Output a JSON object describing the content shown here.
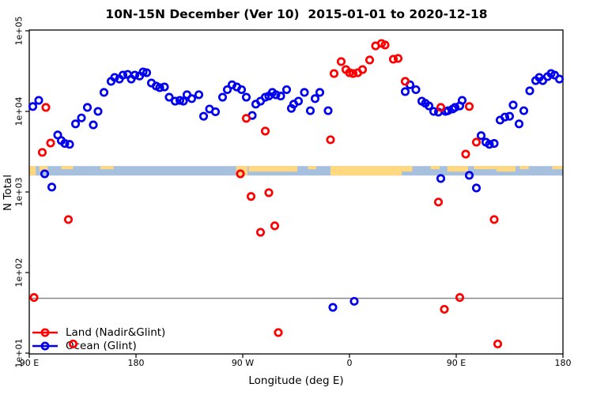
{
  "title": "10N-15N December (Ver 10)  2015-01-01 to 2020-12-18",
  "axes": {
    "xlabel": "Longitude (deg E)",
    "ylabel": "N Total",
    "x_ticks": [
      {
        "lon": 90,
        "label": "90 E"
      },
      {
        "lon": 180,
        "label": "180"
      },
      {
        "lon": 270,
        "label": "90 W"
      },
      {
        "lon": 360,
        "label": "0"
      },
      {
        "lon": 450,
        "label": "90 E"
      },
      {
        "lon": 540,
        "label": "180"
      }
    ],
    "y_ticks": [
      {
        "value": 10,
        "label": "1e+01"
      },
      {
        "value": 100,
        "label": "1e+02"
      },
      {
        "value": 1000,
        "label": "1e+03"
      },
      {
        "value": 10000,
        "label": "1e+04"
      },
      {
        "value": 100000,
        "label": "1e+05"
      }
    ]
  },
  "legend": [
    {
      "label": "Land (Nadir&Glint)",
      "color": "#FF0000"
    },
    {
      "label": "Ocean (Glint)",
      "color": "#0000EE"
    }
  ],
  "colors": {
    "land_series": "#FF0000",
    "ocean_series": "#0000EE",
    "map_ocean": "#A7C0DE",
    "map_land": "#FFD87F",
    "reference_line": "#808080",
    "frame": "#000000"
  },
  "chart_data": {
    "type": "scatter",
    "title": "10N-15N December (Ver 10)  2015-01-01 to 2020-12-18",
    "xlabel": "Longitude (deg E)",
    "ylabel": "N Total",
    "x_domain_deg": [
      90,
      540
    ],
    "y_domain": [
      10,
      100000
    ],
    "y_scale": "log",
    "grid": false,
    "legend_position": "bottom-left",
    "reference_line_value": 48,
    "map_strip": {
      "description": "world-map latitude band 10N-15N drawn across plot",
      "value_range": [
        1600,
        2100
      ],
      "land_segments": [
        {
          "from": 90,
          "to": 95.5,
          "coverage": "full"
        },
        {
          "from": 98.5,
          "to": 105.5,
          "coverage": "top"
        },
        {
          "from": 117,
          "to": 127,
          "coverage": "thin"
        },
        {
          "from": 150,
          "to": 161,
          "coverage": "thin"
        },
        {
          "from": 264.5,
          "to": 274,
          "coverage": "full"
        },
        {
          "from": 275,
          "to": 316,
          "coverage": "top"
        },
        {
          "from": 325,
          "to": 332,
          "coverage": "thin"
        },
        {
          "from": 344,
          "to": 404,
          "coverage": "full"
        },
        {
          "from": 404,
          "to": 413,
          "coverage": "top"
        },
        {
          "from": 428.5,
          "to": 436,
          "coverage": "thin"
        },
        {
          "from": 442.5,
          "to": 460,
          "coverage": "top"
        },
        {
          "from": 465,
          "to": 484,
          "coverage": "thin"
        },
        {
          "from": 484,
          "to": 500,
          "coverage": "top"
        },
        {
          "from": 503.5,
          "to": 511,
          "coverage": "thin"
        },
        {
          "from": 531,
          "to": 540,
          "coverage": "thin"
        }
      ]
    },
    "series": [
      {
        "name": "Ocean (Glint)",
        "color": "#0000EE",
        "points": [
          [
            93,
            11500
          ],
          [
            98,
            13700
          ],
          [
            103,
            1680
          ],
          [
            109,
            1150
          ],
          [
            114,
            5100
          ],
          [
            117,
            4340
          ],
          [
            120,
            4000
          ],
          [
            124,
            3900
          ],
          [
            129,
            7000
          ],
          [
            134,
            8300
          ],
          [
            139,
            11200
          ],
          [
            144,
            6800
          ],
          [
            148,
            10000
          ],
          [
            153,
            17200
          ],
          [
            159,
            23600
          ],
          [
            162,
            26400
          ],
          [
            166,
            25200
          ],
          [
            169,
            28200
          ],
          [
            173,
            28800
          ],
          [
            176,
            25200
          ],
          [
            179,
            28200
          ],
          [
            183,
            27500
          ],
          [
            186,
            30900
          ],
          [
            189,
            30200
          ],
          [
            193,
            22500
          ],
          [
            197,
            20600
          ],
          [
            200,
            19700
          ],
          [
            204,
            20100
          ],
          [
            208,
            15000
          ],
          [
            213,
            13400
          ],
          [
            217,
            13700
          ],
          [
            220,
            13400
          ],
          [
            223,
            16100
          ],
          [
            227,
            14400
          ],
          [
            233,
            16100
          ],
          [
            237,
            8700
          ],
          [
            242,
            10700
          ],
          [
            247,
            9900
          ],
          [
            253,
            15000
          ],
          [
            257,
            18600
          ],
          [
            261,
            21400
          ],
          [
            265,
            20100
          ],
          [
            269,
            18600
          ],
          [
            273,
            15000
          ],
          [
            278,
            8900
          ],
          [
            281,
            12300
          ],
          [
            285,
            13400
          ],
          [
            289,
            15000
          ],
          [
            292,
            15500
          ],
          [
            295,
            17200
          ],
          [
            298,
            16100
          ],
          [
            302,
            15500
          ],
          [
            307,
            18600
          ],
          [
            311,
            10900
          ],
          [
            313,
            12300
          ],
          [
            317,
            13400
          ],
          [
            322,
            17200
          ],
          [
            327,
            10200
          ],
          [
            331,
            14400
          ],
          [
            335,
            17200
          ],
          [
            342,
            10200
          ],
          [
            346,
            37
          ],
          [
            364,
            44
          ],
          [
            407,
            17600
          ],
          [
            411,
            21400
          ],
          [
            416,
            18600
          ],
          [
            421,
            13400
          ],
          [
            424,
            12600
          ],
          [
            427,
            11700
          ],
          [
            431,
            10000
          ],
          [
            435,
            9800
          ],
          [
            437,
            1470
          ],
          [
            441,
            10000
          ],
          [
            443,
            10200
          ],
          [
            447,
            10700
          ],
          [
            449,
            11200
          ],
          [
            453,
            11700
          ],
          [
            455,
            13700
          ],
          [
            461,
            1610
          ],
          [
            467,
            1120
          ],
          [
            471,
            5000
          ],
          [
            475,
            4150
          ],
          [
            478,
            3900
          ],
          [
            482,
            4000
          ],
          [
            487,
            7800
          ],
          [
            491,
            8500
          ],
          [
            495,
            8700
          ],
          [
            498,
            12000
          ],
          [
            503,
            7000
          ],
          [
            507,
            10200
          ],
          [
            512,
            18000
          ],
          [
            517,
            24100
          ],
          [
            520,
            26400
          ],
          [
            523,
            24100
          ],
          [
            527,
            27000
          ],
          [
            530,
            29500
          ],
          [
            533,
            28200
          ],
          [
            537,
            25200
          ]
        ]
      },
      {
        "name": "Land (Nadir&Glint)",
        "color": "#FF0000",
        "points": [
          [
            94,
            49
          ],
          [
            101,
            3100
          ],
          [
            104,
            11200
          ],
          [
            108,
            4050
          ],
          [
            123,
            455
          ],
          [
            127,
            13
          ],
          [
            268,
            1680
          ],
          [
            273,
            8200
          ],
          [
            277,
            880
          ],
          [
            285,
            316
          ],
          [
            289,
            5700
          ],
          [
            292,
            980
          ],
          [
            297,
            380
          ],
          [
            300,
            18
          ],
          [
            344,
            4450
          ],
          [
            347,
            29500
          ],
          [
            353,
            41500
          ],
          [
            357,
            33000
          ],
          [
            360,
            30200
          ],
          [
            363,
            29500
          ],
          [
            367,
            30200
          ],
          [
            371,
            33000
          ],
          [
            377,
            43400
          ],
          [
            382,
            65000
          ],
          [
            387,
            69700
          ],
          [
            390,
            66700
          ],
          [
            397,
            44400
          ],
          [
            401,
            45400
          ],
          [
            407,
            23600
          ],
          [
            435,
            750
          ],
          [
            437,
            11200
          ],
          [
            440,
            35
          ],
          [
            453,
            49
          ],
          [
            458,
            2950
          ],
          [
            461,
            11500
          ],
          [
            467,
            4150
          ],
          [
            482,
            455
          ],
          [
            485,
            13
          ]
        ]
      }
    ]
  }
}
